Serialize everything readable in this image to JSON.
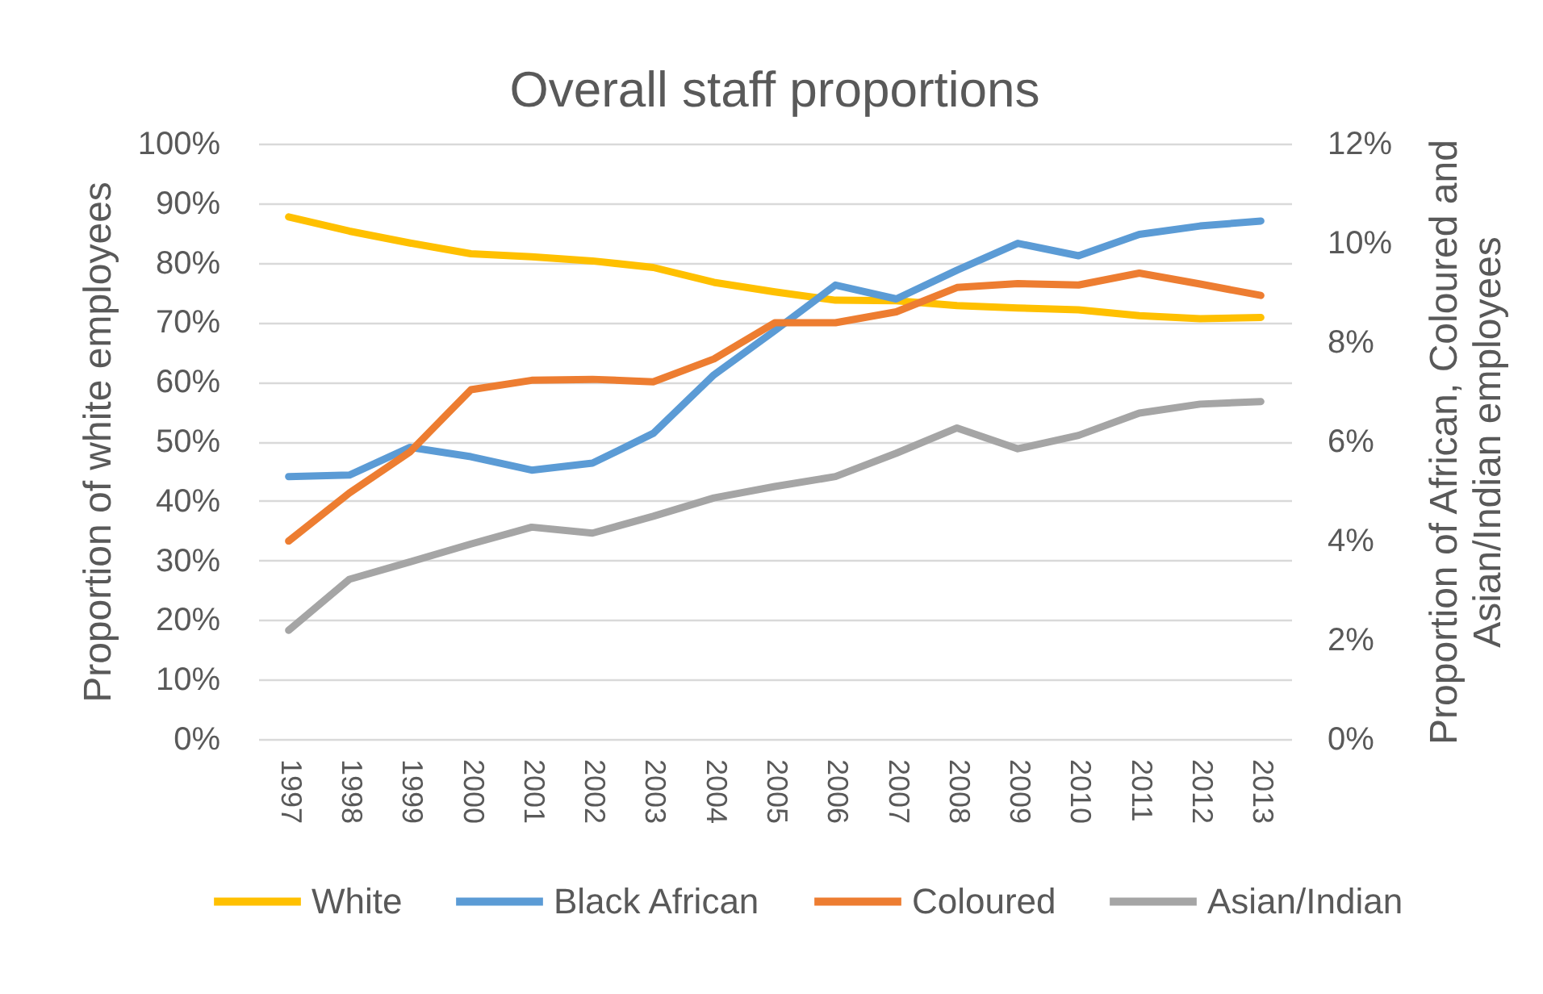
{
  "chart_data": {
    "type": "line",
    "title": "Overall staff proportions",
    "ylabel": "Proportion of white employees",
    "y2label": "Proportion of African, Coloured and Asian/Indian employees",
    "categories": [
      "1997",
      "1998",
      "1999",
      "2000",
      "2001",
      "2002",
      "2003",
      "2004",
      "2005",
      "2006",
      "2007",
      "2008",
      "2009",
      "2010",
      "2011",
      "2012",
      "2013"
    ],
    "series": [
      {
        "name": "White",
        "color": "#ffc000",
        "values": [
          87.7,
          85.3,
          83.3,
          81.5,
          81.0,
          80.3,
          79.2,
          76.7,
          75.1,
          73.7,
          73.6,
          72.8,
          72.4,
          72.1,
          71.1,
          70.6,
          70.8
        ]
      },
      {
        "name": "Black African",
        "color": "#5b9bd5",
        "axis": "y2",
        "values": [
          5.29,
          5.32,
          5.88,
          5.69,
          5.42,
          5.56,
          6.16,
          7.34,
          8.23,
          9.15,
          8.87,
          9.45,
          9.99,
          9.74,
          10.17,
          10.34,
          10.44
        ]
      },
      {
        "name": "Coloured",
        "color": "#ed7d31",
        "axis": "y2",
        "values": [
          3.99,
          4.96,
          5.79,
          7.04,
          7.23,
          7.25,
          7.2,
          7.66,
          8.39,
          8.39,
          8.61,
          9.1,
          9.18,
          9.15,
          9.39,
          9.17,
          8.94
        ]
      },
      {
        "name": "Asian/Indian",
        "color": "#a5a5a5",
        "axis": "y2",
        "values": [
          2.19,
          3.22,
          3.57,
          3.93,
          4.27,
          4.15,
          4.49,
          4.86,
          5.09,
          5.29,
          5.76,
          6.27,
          5.85,
          6.12,
          6.57,
          6.75,
          6.8
        ]
      }
    ],
    "ylim": [
      0,
      100
    ],
    "yticks": [
      {
        "value": 0,
        "label": "0%"
      },
      {
        "value": 10,
        "label": "10%"
      },
      {
        "value": 20,
        "label": "20%"
      },
      {
        "value": 30,
        "label": "30%"
      },
      {
        "value": 40,
        "label": "40%"
      },
      {
        "value": 50,
        "label": "50%"
      },
      {
        "value": 60,
        "label": "60%"
      },
      {
        "value": 70,
        "label": "70%"
      },
      {
        "value": 80,
        "label": "80%"
      },
      {
        "value": 90,
        "label": "90%"
      },
      {
        "value": 100,
        "label": "100%"
      }
    ],
    "y2lim": [
      0,
      12
    ],
    "y2ticks": [
      {
        "value": 0,
        "label": "0%"
      },
      {
        "value": 2,
        "label": "2%"
      },
      {
        "value": 4,
        "label": "4%"
      },
      {
        "value": 6,
        "label": "6%"
      },
      {
        "value": 8,
        "label": "8%"
      },
      {
        "value": 10,
        "label": "10%"
      },
      {
        "value": 12,
        "label": "12%"
      }
    ],
    "grid": "y",
    "legend": "bottom"
  }
}
